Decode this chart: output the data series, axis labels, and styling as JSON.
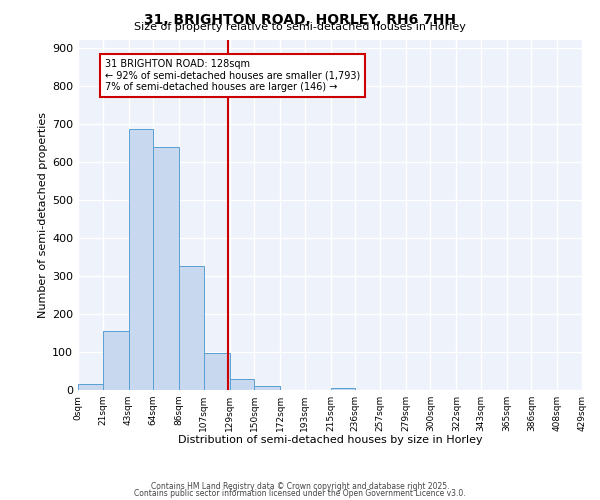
{
  "title": "31, BRIGHTON ROAD, HORLEY, RH6 7HH",
  "subtitle": "Size of property relative to semi-detached houses in Horley",
  "xlabel": "Distribution of semi-detached houses by size in Horley",
  "ylabel": "Number of semi-detached properties",
  "bar_color": "#c8d9ef",
  "bar_edge_color": "#5a9fd4",
  "background_color": "#eef2fb",
  "grid_color": "#ffffff",
  "bin_edges": [
    0,
    21,
    43,
    64,
    86,
    107,
    129,
    150,
    172,
    193,
    215,
    236,
    257,
    279,
    300,
    322,
    343,
    365,
    386,
    408,
    429
  ],
  "bin_labels": [
    "0sqm",
    "21sqm",
    "43sqm",
    "64sqm",
    "86sqm",
    "107sqm",
    "129sqm",
    "150sqm",
    "172sqm",
    "193sqm",
    "215sqm",
    "236sqm",
    "257sqm",
    "279sqm",
    "300sqm",
    "322sqm",
    "343sqm",
    "365sqm",
    "386sqm",
    "408sqm",
    "429sqm"
  ],
  "bar_heights": [
    15,
    155,
    685,
    640,
    325,
    97,
    30,
    10,
    0,
    0,
    5,
    0,
    0,
    0,
    0,
    0,
    0,
    0,
    0,
    0
  ],
  "property_line_x": 128,
  "property_line_color": "#cc0000",
  "annotation_line1": "31 BRIGHTON ROAD: 128sqm",
  "annotation_line2": "← 92% of semi-detached houses are smaller (1,793)",
  "annotation_line3": "7% of semi-detached houses are larger (146) →",
  "annotation_box_color": "#cc0000",
  "ylim": [
    0,
    920
  ],
  "yticks": [
    0,
    100,
    200,
    300,
    400,
    500,
    600,
    700,
    800,
    900
  ],
  "footer_line1": "Contains HM Land Registry data © Crown copyright and database right 2025.",
  "footer_line2": "Contains public sector information licensed under the Open Government Licence v3.0."
}
